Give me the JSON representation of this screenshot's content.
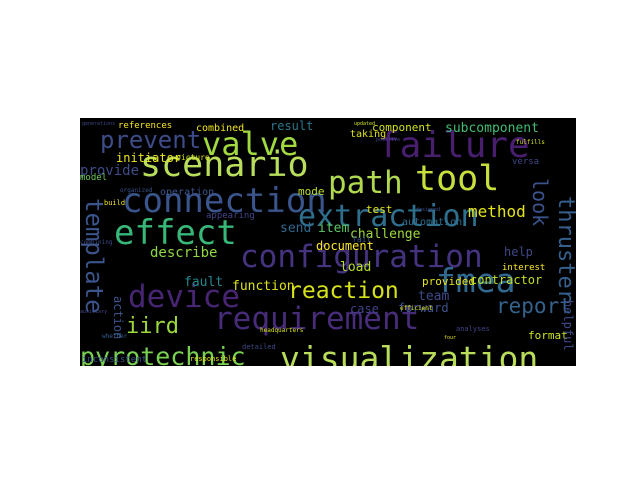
{
  "wordcloud": {
    "background_color": "#000000",
    "words": [
      {
        "text": "visualization",
        "weight": 100,
        "color": "#b9dd5a",
        "vertical": false
      },
      {
        "text": "configuration",
        "weight": 96,
        "color": "#45337f",
        "vertical": false
      },
      {
        "text": "extraction",
        "weight": 94,
        "color": "#2f6f8e",
        "vertical": false
      },
      {
        "text": "connection",
        "weight": 92,
        "color": "#3a548c",
        "vertical": false
      },
      {
        "text": "requirement",
        "weight": 90,
        "color": "#472c7a",
        "vertical": false
      },
      {
        "text": "failure",
        "weight": 90,
        "color": "#481e6f",
        "vertical": false
      },
      {
        "text": "scenario",
        "weight": 88,
        "color": "#b8de5c",
        "vertical": false
      },
      {
        "text": "device",
        "weight": 87,
        "color": "#482573",
        "vertical": false
      },
      {
        "text": "effect",
        "weight": 86,
        "color": "#37b878",
        "vertical": false
      },
      {
        "text": "path",
        "weight": 86,
        "color": "#b1d94f",
        "vertical": false
      },
      {
        "text": "tool",
        "weight": 86,
        "color": "#c9e03c",
        "vertical": false
      },
      {
        "text": "valve",
        "weight": 84,
        "color": "#a0da40",
        "vertical": false
      },
      {
        "text": "fmea",
        "weight": 84,
        "color": "#31698e",
        "vertical": false
      },
      {
        "text": "pyrotechnic",
        "weight": 72,
        "color": "#78d151",
        "vertical": false
      },
      {
        "text": "template",
        "weight": 70,
        "color": "#3b548b",
        "vertical": true
      },
      {
        "text": "thruster",
        "weight": 70,
        "color": "#355f8d",
        "vertical": true
      },
      {
        "text": "prevent",
        "weight": 68,
        "color": "#3d4c89",
        "vertical": false
      },
      {
        "text": "reaction",
        "weight": 66,
        "color": "#d5e21a",
        "vertical": false
      },
      {
        "text": "look",
        "weight": 64,
        "color": "#3a538b",
        "vertical": true
      },
      {
        "text": "iird",
        "weight": 64,
        "color": "#9bd93c",
        "vertical": false
      },
      {
        "text": "report",
        "weight": 60,
        "color": "#33638d",
        "vertical": false
      },
      {
        "text": "method",
        "weight": 52,
        "color": "#e5e419",
        "vertical": false
      },
      {
        "text": "describe",
        "weight": 50,
        "color": "#8fd744",
        "vertical": false
      },
      {
        "text": "function",
        "weight": 48,
        "color": "#dde318",
        "vertical": false
      },
      {
        "text": "team",
        "weight": 46,
        "color": "#3e4a89",
        "vertical": false
      },
      {
        "text": "item",
        "weight": 46,
        "color": "#5ac864",
        "vertical": false
      },
      {
        "text": "fault",
        "weight": 46,
        "color": "#24878e",
        "vertical": false
      },
      {
        "text": "subcomponent",
        "weight": 44,
        "color": "#40bd72",
        "vertical": false
      },
      {
        "text": "initiator",
        "weight": 44,
        "color": "#ece51b",
        "vertical": false
      },
      {
        "text": "send",
        "weight": 44,
        "color": "#31688e",
        "vertical": false
      },
      {
        "text": "challenge",
        "weight": 42,
        "color": "#9fda3a",
        "vertical": false
      },
      {
        "text": "document",
        "weight": 42,
        "color": "#fde725",
        "vertical": false
      },
      {
        "text": "help",
        "weight": 42,
        "color": "#3f4889",
        "vertical": false
      },
      {
        "text": "action",
        "weight": 42,
        "color": "#3b528b",
        "vertical": true
      },
      {
        "text": "provide",
        "weight": 40,
        "color": "#3e4c8a",
        "vertical": false
      },
      {
        "text": "result",
        "weight": 38,
        "color": "#2a788e",
        "vertical": false
      },
      {
        "text": "component",
        "weight": 38,
        "color": "#d2e21b",
        "vertical": false
      },
      {
        "text": "load",
        "weight": 38,
        "color": "#b5de2b",
        "vertical": false
      },
      {
        "text": "test",
        "weight": 38,
        "color": "#e2e418",
        "vertical": false
      },
      {
        "text": "case",
        "weight": 38,
        "color": "#414487",
        "vertical": false
      },
      {
        "text": "forward",
        "weight": 38,
        "color": "#3b528b",
        "vertical": false
      },
      {
        "text": "format",
        "weight": 38,
        "color": "#cde11d",
        "vertical": false
      },
      {
        "text": "provided",
        "weight": 38,
        "color": "#e7e419",
        "vertical": false
      },
      {
        "text": "contractor",
        "weight": 38,
        "color": "#c0df25",
        "vertical": false
      },
      {
        "text": "combined",
        "weight": 36,
        "color": "#f1e51d",
        "vertical": false
      },
      {
        "text": "operation",
        "weight": 36,
        "color": "#3b528b",
        "vertical": false
      },
      {
        "text": "mode",
        "weight": 36,
        "color": "#bddf26",
        "vertical": false
      },
      {
        "text": "taking",
        "weight": 36,
        "color": "#dfe318",
        "vertical": false
      },
      {
        "text": "automation",
        "weight": 36,
        "color": "#2e6e8e",
        "vertical": false
      },
      {
        "text": "versa",
        "weight": 36,
        "color": "#3e4989",
        "vertical": false
      },
      {
        "text": "interest",
        "weight": 34,
        "color": "#fde725",
        "vertical": false
      },
      {
        "text": "references",
        "weight": 34,
        "color": "#f8e621",
        "vertical": false
      },
      {
        "text": "model",
        "weight": 34,
        "color": "#6ece58",
        "vertical": false
      },
      {
        "text": "helpful",
        "weight": 34,
        "color": "#3e4989",
        "vertical": true
      },
      {
        "text": "appearing",
        "weight": 34,
        "color": "#414487",
        "vertical": false
      },
      {
        "text": "build",
        "weight": 32,
        "color": "#f6e620",
        "vertical": false
      },
      {
        "text": "picture",
        "weight": 32,
        "color": "#dae319",
        "vertical": false
      },
      {
        "text": "fulfills",
        "weight": 30,
        "color": "#d8e219",
        "vertical": false
      },
      {
        "text": "efficient",
        "weight": 30,
        "color": "#e4e419",
        "vertical": false
      },
      {
        "text": "inconsistent",
        "weight": 30,
        "color": "#3b528b",
        "vertical": false
      },
      {
        "text": "responsible",
        "weight": 30,
        "color": "#eae51a",
        "vertical": false
      },
      {
        "text": "detailed",
        "weight": 30,
        "color": "#3e4989",
        "vertical": false
      },
      {
        "text": "whether",
        "weight": 28,
        "color": "#35608d",
        "vertical": false
      },
      {
        "text": "combining",
        "weight": 28,
        "color": "#3d4d8a",
        "vertical": false
      },
      {
        "text": "analyses",
        "weight": 28,
        "color": "#414487",
        "vertical": false
      },
      {
        "text": "organized",
        "weight": 26,
        "color": "#3b528b",
        "vertical": false
      },
      {
        "text": "positive",
        "weight": 26,
        "color": "#414487",
        "vertical": false
      },
      {
        "text": "designed",
        "weight": 26,
        "color": "#3b528b",
        "vertical": false
      },
      {
        "text": "headquarters",
        "weight": 26,
        "color": "#d8e219",
        "vertical": false
      },
      {
        "text": "fail",
        "weight": 26,
        "color": "#3b528b",
        "vertical": false
      },
      {
        "text": "generations",
        "weight": 24,
        "color": "#3f4788",
        "vertical": false
      },
      {
        "text": "updated",
        "weight": 24,
        "color": "#d0e11c",
        "vertical": false
      },
      {
        "text": "auxiliary",
        "weight": 22,
        "color": "#3f4788",
        "vertical": false
      },
      {
        "text": "four",
        "weight": 22,
        "color": "#dde318",
        "vertical": false
      }
    ]
  }
}
